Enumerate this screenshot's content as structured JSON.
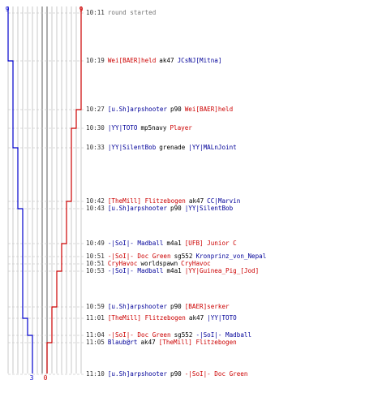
{
  "timeline": {
    "top_scores": {
      "blue": "9",
      "red": "9"
    },
    "bottom_scores": {
      "blue": "3",
      "red": "0"
    },
    "colors": {
      "blue": "#0000cc",
      "red": "#cc0000",
      "grid": "#bbbbbb",
      "dash": "#cccccc"
    }
  },
  "events": [
    {
      "time": "10:11",
      "parts": [
        {
          "text": "round started",
          "color": "gray"
        }
      ]
    },
    {
      "time": "10:19",
      "parts": [
        {
          "text": "Wei[BAER]held",
          "color": "red"
        },
        {
          "text": "ak47",
          "color": "black"
        },
        {
          "text": "JCsNJ[Mitna]",
          "color": "blue"
        }
      ]
    },
    {
      "time": "10:27",
      "parts": [
        {
          "text": "[u.Sh]arpshooter",
          "color": "blue"
        },
        {
          "text": "p90",
          "color": "black"
        },
        {
          "text": "Wei[BAER]held",
          "color": "red"
        }
      ]
    },
    {
      "time": "10:30",
      "parts": [
        {
          "text": "|YY|TOTO",
          "color": "blue"
        },
        {
          "text": "mp5navy",
          "color": "black"
        },
        {
          "text": "Player",
          "color": "red"
        }
      ]
    },
    {
      "time": "10:33",
      "parts": [
        {
          "text": "|YY|SilentBob",
          "color": "blue"
        },
        {
          "text": "grenade",
          "color": "black"
        },
        {
          "text": "|YY|MALnJoint",
          "color": "blue"
        }
      ]
    },
    {
      "time": "10:42",
      "parts": [
        {
          "text": "[TheMill] Flitzebogen",
          "color": "red"
        },
        {
          "text": "ak47",
          "color": "black"
        },
        {
          "text": "CC|Marvin",
          "color": "blue"
        }
      ]
    },
    {
      "time": "10:43",
      "parts": [
        {
          "text": "[u.Sh]arpshooter",
          "color": "blue"
        },
        {
          "text": "p90",
          "color": "black"
        },
        {
          "text": "|YY|SilentBob",
          "color": "blue"
        }
      ]
    },
    {
      "time": "10:49",
      "parts": [
        {
          "text": "-|SoI|- Madball",
          "color": "blue"
        },
        {
          "text": "m4a1",
          "color": "black"
        },
        {
          "text": "[UFB] Junior C",
          "color": "red"
        }
      ]
    },
    {
      "time": "10:51",
      "parts": [
        {
          "text": "-|SoI|- Doc Green",
          "color": "red"
        },
        {
          "text": "sg552",
          "color": "black"
        },
        {
          "text": "Kronprinz_von_Nepal",
          "color": "blue"
        }
      ]
    },
    {
      "time": "10:51",
      "parts": [
        {
          "text": "CryHavoc",
          "color": "red"
        },
        {
          "text": "worldspawn",
          "color": "black"
        },
        {
          "text": "CryHavoc",
          "color": "red"
        }
      ]
    },
    {
      "time": "10:53",
      "parts": [
        {
          "text": "-|SoI|- Madball",
          "color": "blue"
        },
        {
          "text": "m4a1",
          "color": "black"
        },
        {
          "text": "|YY|Guinea_Pig_[Jod]",
          "color": "red"
        }
      ]
    },
    {
      "time": "10:59",
      "parts": [
        {
          "text": "[u.Sh]arpshooter",
          "color": "blue"
        },
        {
          "text": "p90",
          "color": "black"
        },
        {
          "text": "[BAER]serker",
          "color": "red"
        }
      ]
    },
    {
      "time": "11:01",
      "parts": [
        {
          "text": "[TheMill] Flitzebogen",
          "color": "red"
        },
        {
          "text": "ak47",
          "color": "black"
        },
        {
          "text": "|YY|TOTO",
          "color": "blue"
        }
      ]
    },
    {
      "time": "11:04",
      "parts": [
        {
          "text": "-|SoI|- Doc Green",
          "color": "red"
        },
        {
          "text": "sg552",
          "color": "black"
        },
        {
          "text": "-|SoI|- Madball",
          "color": "blue"
        }
      ]
    },
    {
      "time": "11:05",
      "parts": [
        {
          "text": "Blaub@rt",
          "color": "blue"
        },
        {
          "text": "ak47",
          "color": "black"
        },
        {
          "text": "[TheMill] Flitzebogen",
          "color": "red"
        }
      ]
    },
    {
      "time": "11:10",
      "parts": [
        {
          "text": "[u.Sh]arpshooter",
          "color": "blue"
        },
        {
          "text": "p90",
          "color": "black"
        },
        {
          "text": "-|SoI|- Doc Green",
          "color": "red"
        }
      ]
    }
  ]
}
